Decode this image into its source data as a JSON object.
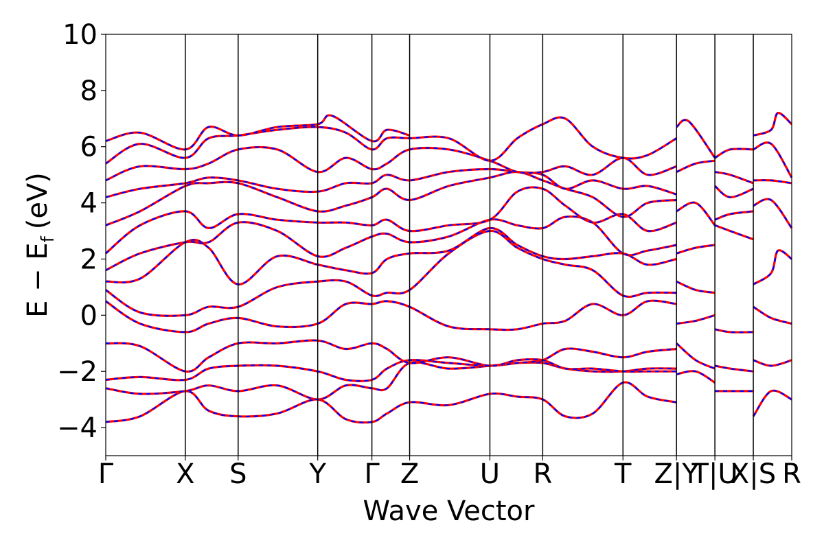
{
  "chart_data": {
    "type": "line",
    "title": "",
    "xlabel": "Wave Vector",
    "ylabel": "E − E",
    "ylabel_subscript": "f",
    "ylabel_unit": "(eV)",
    "ylim": [
      -5,
      10
    ],
    "yticks": [
      -4,
      -2,
      0,
      2,
      4,
      6,
      8,
      10
    ],
    "ytick_labels": [
      "−4",
      "−2",
      "0",
      "2",
      "4",
      "6",
      "8",
      "10"
    ],
    "xlim": [
      0,
      100
    ],
    "kpoints": [
      {
        "label": "Γ",
        "x": 0
      },
      {
        "label": "X",
        "x": 11.6
      },
      {
        "label": "S",
        "x": 19.3
      },
      {
        "label": "Y",
        "x": 30.9
      },
      {
        "label": "Γ",
        "x": 38.8
      },
      {
        "label": "Z",
        "x": 44.3
      },
      {
        "label": "U",
        "x": 56.0
      },
      {
        "label": "R",
        "x": 63.7
      },
      {
        "label": "T",
        "x": 75.4
      },
      {
        "label": "Z|Y",
        "x": 83.2
      },
      {
        "label": "T|U",
        "x": 88.8
      },
      {
        "label": "X|S",
        "x": 94.4
      },
      {
        "label": "R",
        "x": 100
      }
    ],
    "grid": false,
    "legend": "none",
    "series_style": [
      {
        "color": "#ff0000",
        "dash": "solid"
      },
      {
        "color": "#0000ff",
        "dash": "dashed"
      }
    ],
    "bands": [
      [
        [
          0,
          -3.8
        ],
        [
          5,
          -3.6
        ],
        [
          11.6,
          -2.7
        ],
        [
          15,
          -3.4
        ],
        [
          19.3,
          -3.6
        ],
        [
          25,
          -3.5
        ],
        [
          30.9,
          -3.0
        ],
        [
          35,
          -3.7
        ],
        [
          38.8,
          -3.8
        ],
        [
          41,
          -3.5
        ],
        [
          44.3,
          -3.1
        ],
        [
          50,
          -3.2
        ],
        [
          56,
          -2.8
        ],
        [
          60,
          -2.9
        ],
        [
          63.7,
          -3.0
        ],
        [
          67,
          -3.6
        ],
        [
          71,
          -3.5
        ],
        [
          75.4,
          -2.4
        ],
        [
          79,
          -2.9
        ],
        [
          83.2,
          -3.1
        ]
      ],
      [
        [
          0,
          -2.6
        ],
        [
          5,
          -2.8
        ],
        [
          11.6,
          -2.7
        ],
        [
          15,
          -2.5
        ],
        [
          19.3,
          -2.7
        ],
        [
          25,
          -2.5
        ],
        [
          30.9,
          -3.0
        ],
        [
          35,
          -2.5
        ],
        [
          38.8,
          -2.6
        ],
        [
          41,
          -2.6
        ],
        [
          44.3,
          -1.7
        ],
        [
          50,
          -1.9
        ],
        [
          56,
          -1.8
        ],
        [
          60,
          -1.7
        ],
        [
          63.7,
          -1.7
        ],
        [
          67,
          -1.9
        ],
        [
          71,
          -2.0
        ],
        [
          75.4,
          -2.0
        ],
        [
          79,
          -1.9
        ],
        [
          83.2,
          -1.9
        ]
      ],
      [
        [
          0,
          -2.3
        ],
        [
          5,
          -2.2
        ],
        [
          11.6,
          -2.3
        ],
        [
          15,
          -1.9
        ],
        [
          19.3,
          -1.8
        ],
        [
          25,
          -1.8
        ],
        [
          30.9,
          -2.0
        ],
        [
          35,
          -2.3
        ],
        [
          38.8,
          -2.3
        ],
        [
          41,
          -1.9
        ],
        [
          44.3,
          -1.6
        ],
        [
          50,
          -1.7
        ],
        [
          56,
          -1.8
        ],
        [
          60,
          -1.7
        ],
        [
          63.7,
          -1.6
        ],
        [
          67,
          -1.2
        ],
        [
          71,
          -1.3
        ],
        [
          75.4,
          -1.5
        ],
        [
          79,
          -1.3
        ],
        [
          83.2,
          -1.2
        ]
      ],
      [
        [
          0,
          -1.0
        ],
        [
          5,
          -1.1
        ],
        [
          11.6,
          -2.0
        ],
        [
          15,
          -1.5
        ],
        [
          19.3,
          -1.0
        ],
        [
          25,
          -1.0
        ],
        [
          30.9,
          -0.9
        ],
        [
          35,
          -1.2
        ],
        [
          38.8,
          -1.0
        ],
        [
          41,
          -1.2
        ],
        [
          44.3,
          -1.7
        ],
        [
          50,
          -1.5
        ],
        [
          56,
          -1.8
        ],
        [
          60,
          -1.6
        ],
        [
          63.7,
          -1.6
        ],
        [
          67,
          -1.9
        ],
        [
          71,
          -1.9
        ],
        [
          75.4,
          -2.0
        ],
        [
          79,
          -2.0
        ],
        [
          83.2,
          -2.0
        ]
      ],
      [
        [
          0,
          0.5
        ],
        [
          5,
          -0.3
        ],
        [
          11.6,
          -0.6
        ],
        [
          15,
          -0.3
        ],
        [
          19.3,
          -0.1
        ],
        [
          25,
          -0.4
        ],
        [
          30.9,
          -0.3
        ],
        [
          35,
          0.4
        ],
        [
          38.8,
          0.4
        ],
        [
          41,
          0.5
        ],
        [
          44.3,
          0.3
        ],
        [
          50,
          -0.4
        ],
        [
          56,
          -0.5
        ],
        [
          60,
          -0.5
        ],
        [
          63.7,
          -0.3
        ],
        [
          67,
          -0.2
        ],
        [
          71,
          0.4
        ],
        [
          75.4,
          0.0
        ],
        [
          79,
          0.5
        ],
        [
          83.2,
          0.4
        ]
      ],
      [
        [
          0,
          0.9
        ],
        [
          5,
          0.1
        ],
        [
          11.6,
          0.0
        ],
        [
          15,
          0.3
        ],
        [
          19.3,
          0.3
        ],
        [
          25,
          1.0
        ],
        [
          30.9,
          1.2
        ],
        [
          35,
          1.2
        ],
        [
          38.8,
          0.7
        ],
        [
          41,
          0.8
        ],
        [
          44.3,
          0.9
        ],
        [
          50,
          2.2
        ],
        [
          56,
          3.0
        ],
        [
          60,
          2.4
        ],
        [
          63.7,
          2.0
        ],
        [
          67,
          1.8
        ],
        [
          71,
          1.6
        ],
        [
          75.4,
          0.7
        ],
        [
          79,
          0.8
        ],
        [
          83.2,
          0.8
        ]
      ],
      [
        [
          0,
          1.2
        ],
        [
          5,
          1.3
        ],
        [
          11.6,
          2.6
        ],
        [
          15,
          2.4
        ],
        [
          19.3,
          1.1
        ],
        [
          25,
          2.1
        ],
        [
          30.9,
          1.8
        ],
        [
          35,
          1.6
        ],
        [
          38.8,
          1.5
        ],
        [
          41,
          2.0
        ],
        [
          44.3,
          2.2
        ],
        [
          50,
          2.3
        ],
        [
          56,
          3.1
        ],
        [
          60,
          2.5
        ],
        [
          63.7,
          2.1
        ],
        [
          67,
          2.0
        ],
        [
          71,
          2.1
        ],
        [
          75.4,
          2.2
        ],
        [
          79,
          1.8
        ],
        [
          83.2,
          2.0
        ]
      ],
      [
        [
          0,
          1.6
        ],
        [
          5,
          2.2
        ],
        [
          11.6,
          2.6
        ],
        [
          15,
          2.6
        ],
        [
          19.3,
          3.3
        ],
        [
          25,
          3.0
        ],
        [
          30.9,
          2.1
        ],
        [
          35,
          2.4
        ],
        [
          38.8,
          2.8
        ],
        [
          41,
          2.9
        ],
        [
          44.3,
          2.6
        ],
        [
          50,
          2.8
        ],
        [
          56,
          3.4
        ],
        [
          60,
          3.2
        ],
        [
          63.7,
          3.1
        ],
        [
          67,
          3.5
        ],
        [
          71,
          3.3
        ],
        [
          75.4,
          2.2
        ],
        [
          79,
          2.3
        ],
        [
          83.2,
          2.5
        ]
      ],
      [
        [
          0,
          2.2
        ],
        [
          5,
          3.2
        ],
        [
          11.6,
          3.7
        ],
        [
          15,
          3.1
        ],
        [
          19.3,
          3.6
        ],
        [
          25,
          3.4
        ],
        [
          30.9,
          3.3
        ],
        [
          35,
          3.3
        ],
        [
          38.8,
          3.2
        ],
        [
          41,
          3.4
        ],
        [
          44.3,
          3.0
        ],
        [
          50,
          3.2
        ],
        [
          56,
          3.4
        ],
        [
          60,
          4.4
        ],
        [
          63.7,
          4.5
        ],
        [
          67,
          3.9
        ],
        [
          71,
          3.3
        ],
        [
          75.4,
          3.6
        ],
        [
          79,
          3.0
        ],
        [
          83.2,
          3.3
        ]
      ],
      [
        [
          0,
          3.2
        ],
        [
          5,
          3.7
        ],
        [
          11.6,
          4.6
        ],
        [
          15,
          4.7
        ],
        [
          19.3,
          4.7
        ],
        [
          25,
          4.2
        ],
        [
          30.9,
          3.7
        ],
        [
          35,
          3.9
        ],
        [
          38.8,
          4.2
        ],
        [
          41,
          4.5
        ],
        [
          44.3,
          4.1
        ],
        [
          50,
          4.6
        ],
        [
          56,
          4.9
        ],
        [
          60,
          5.1
        ],
        [
          63.7,
          4.8
        ],
        [
          67,
          4.5
        ],
        [
          71,
          4.2
        ],
        [
          75.4,
          3.5
        ],
        [
          79,
          4.0
        ],
        [
          83.2,
          4.1
        ]
      ],
      [
        [
          0,
          4.2
        ],
        [
          5,
          4.5
        ],
        [
          11.6,
          4.7
        ],
        [
          15,
          4.9
        ],
        [
          19.3,
          4.8
        ],
        [
          25,
          4.5
        ],
        [
          30.9,
          4.4
        ],
        [
          35,
          4.7
        ],
        [
          38.8,
          4.7
        ],
        [
          41,
          5.0
        ],
        [
          44.3,
          4.8
        ],
        [
          50,
          5.1
        ],
        [
          56,
          5.2
        ],
        [
          60,
          5.1
        ],
        [
          63.7,
          5.0
        ],
        [
          67,
          4.5
        ],
        [
          71,
          4.8
        ],
        [
          75.4,
          4.5
        ],
        [
          79,
          4.6
        ],
        [
          83.2,
          4.3
        ]
      ],
      [
        [
          0,
          4.8
        ],
        [
          5,
          5.3
        ],
        [
          11.6,
          5.2
        ],
        [
          15,
          5.4
        ],
        [
          19.3,
          5.9
        ],
        [
          25,
          5.9
        ],
        [
          30.9,
          5.1
        ],
        [
          35,
          5.6
        ],
        [
          38.8,
          5.2
        ],
        [
          41,
          5.4
        ],
        [
          44.3,
          5.9
        ],
        [
          50,
          5.9
        ],
        [
          56,
          5.5
        ],
        [
          60,
          5.1
        ],
        [
          63.7,
          5.1
        ],
        [
          67,
          5.3
        ],
        [
          71,
          5.0
        ],
        [
          75.4,
          5.6
        ],
        [
          79,
          5.0
        ],
        [
          83.2,
          5.3
        ]
      ],
      [
        [
          0,
          5.4
        ],
        [
          5,
          6.1
        ],
        [
          11.6,
          5.6
        ],
        [
          15,
          6.3
        ],
        [
          19.3,
          6.4
        ],
        [
          25,
          6.6
        ],
        [
          30.9,
          6.7
        ],
        [
          35,
          6.5
        ],
        [
          38.8,
          5.9
        ],
        [
          41,
          6.3
        ],
        [
          44.3,
          6.3
        ],
        [
          50,
          6.3
        ],
        [
          56,
          5.5
        ],
        [
          60,
          6.3
        ],
        [
          63.7,
          6.8
        ],
        [
          67,
          7.0
        ],
        [
          71,
          6.0
        ],
        [
          75.4,
          5.6
        ],
        [
          79,
          5.7
        ],
        [
          83.2,
          6.3
        ]
      ],
      [
        [
          0,
          6.2
        ],
        [
          5,
          6.5
        ],
        [
          11.6,
          5.9
        ],
        [
          15,
          6.7
        ],
        [
          19.3,
          6.4
        ],
        [
          25,
          6.7
        ],
        [
          30.9,
          6.8
        ],
        [
          33,
          7.1
        ],
        [
          38.8,
          6.2
        ],
        [
          41,
          6.6
        ],
        [
          44.3,
          6.4
        ]
      ],
      [
        [
          83.2,
          6.7
        ],
        [
          85,
          6.9
        ],
        [
          88.8,
          5.6
        ]
      ],
      [
        [
          83.2,
          5.1
        ],
        [
          86,
          5.4
        ],
        [
          88.8,
          5.5
        ]
      ],
      [
        [
          83.2,
          3.7
        ],
        [
          86,
          4.0
        ],
        [
          88.8,
          3.2
        ]
      ],
      [
        [
          83.2,
          2.2
        ],
        [
          86,
          2.4
        ],
        [
          88.8,
          2.5
        ]
      ],
      [
        [
          83.2,
          1.2
        ],
        [
          86,
          0.9
        ],
        [
          88.8,
          0.8
        ]
      ],
      [
        [
          83.2,
          -0.3
        ],
        [
          86,
          -0.2
        ],
        [
          88.8,
          0.0
        ]
      ],
      [
        [
          83.2,
          -1.0
        ],
        [
          86,
          -1.6
        ],
        [
          88.8,
          -1.9
        ]
      ],
      [
        [
          83.2,
          -2.1
        ],
        [
          86,
          -2.0
        ],
        [
          88.8,
          -2.4
        ]
      ],
      [
        [
          88.8,
          5.6
        ],
        [
          91,
          5.9
        ],
        [
          94.4,
          5.9
        ]
      ],
      [
        [
          88.8,
          5.1
        ],
        [
          91,
          5.0
        ],
        [
          94.4,
          4.7
        ]
      ],
      [
        [
          88.8,
          4.6
        ],
        [
          91,
          4.2
        ],
        [
          94.4,
          4.5
        ]
      ],
      [
        [
          88.8,
          3.4
        ],
        [
          91,
          3.6
        ],
        [
          94.4,
          3.7
        ]
      ],
      [
        [
          88.8,
          3.2
        ],
        [
          91,
          3.0
        ],
        [
          94.4,
          2.7
        ]
      ],
      [
        [
          88.8,
          -0.5
        ],
        [
          91,
          -0.6
        ],
        [
          94.4,
          -0.6
        ]
      ],
      [
        [
          88.8,
          -1.8
        ],
        [
          91,
          -1.9
        ],
        [
          94.4,
          -2.0
        ]
      ],
      [
        [
          88.8,
          -2.7
        ],
        [
          91,
          -2.7
        ],
        [
          94.4,
          -2.7
        ]
      ],
      [
        [
          94.4,
          6.4
        ],
        [
          97,
          6.6
        ],
        [
          98,
          7.2
        ],
        [
          100,
          6.8
        ]
      ],
      [
        [
          94.4,
          5.9
        ],
        [
          97,
          6.1
        ],
        [
          100,
          4.9
        ]
      ],
      [
        [
          94.4,
          4.8
        ],
        [
          97,
          4.8
        ],
        [
          100,
          4.7
        ]
      ],
      [
        [
          94.4,
          3.9
        ],
        [
          97,
          4.1
        ],
        [
          100,
          3.1
        ]
      ],
      [
        [
          94.4,
          1.1
        ],
        [
          97,
          1.5
        ],
        [
          98,
          2.3
        ],
        [
          100,
          2.0
        ]
      ],
      [
        [
          94.4,
          0.3
        ],
        [
          97,
          -0.1
        ],
        [
          100,
          -0.3
        ]
      ],
      [
        [
          94.4,
          -1.6
        ],
        [
          97,
          -1.8
        ],
        [
          100,
          -1.6
        ]
      ],
      [
        [
          94.4,
          -3.6
        ],
        [
          97,
          -2.7
        ],
        [
          100,
          -3.0
        ]
      ]
    ]
  }
}
